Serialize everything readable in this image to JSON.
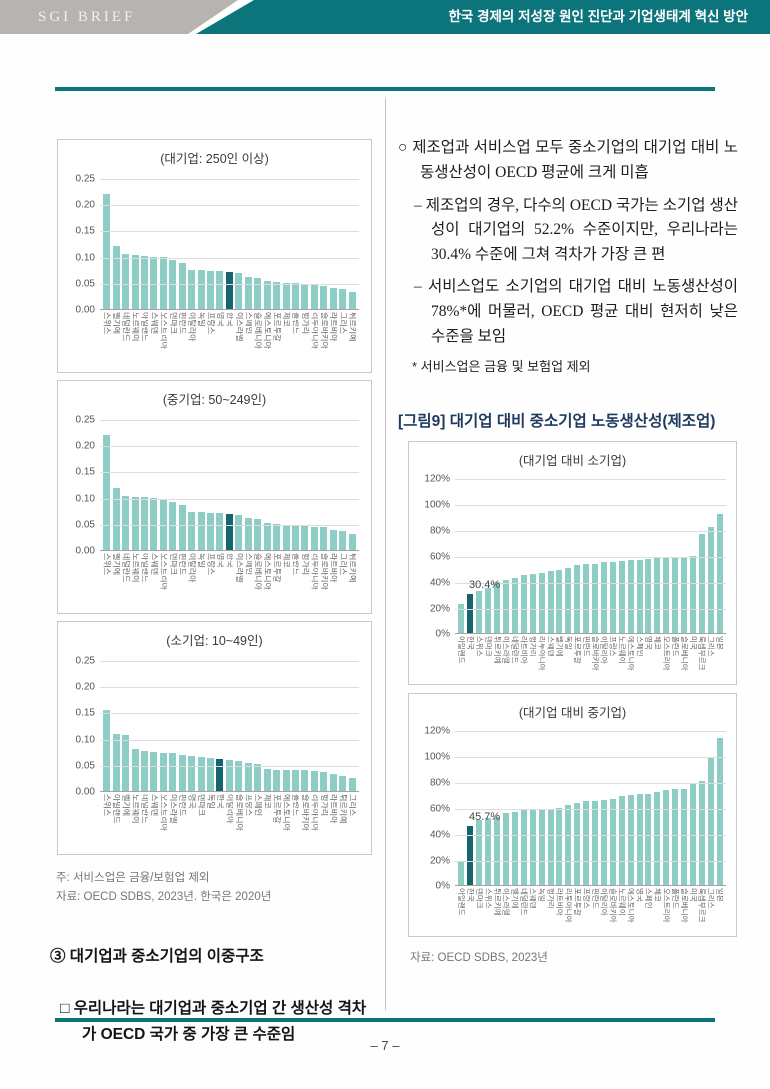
{
  "header": {
    "brand": "SGI BRIEF",
    "title": "한국 경제의 저성장 원인 진단과 기업생태계 혁신 방안"
  },
  "left": {
    "note": "주: 서비스업은 금융/보험업 제외",
    "source": "자료: OECD SDBS, 2023년. 한국은 2020년",
    "heading": "③ 대기업과 중소기업의 이중구조",
    "statement": "□ 우리나라는 대기업과 중소기업 간 생산성 격차가 OECD 국가 중 가장 큰 수준임"
  },
  "right": {
    "paragraphs": [
      {
        "text": "○ 제조업과 서비스업 모두 중소기업의 대기업 대비 노동생산성이 OECD 평균에 크게 미흡"
      },
      {
        "text": "– 제조업의 경우, 다수의 OECD 국가는 소기업 생산성이 대기업의 52.2% 수준이지만, 우리나라는 30.4% 수준에 그쳐 격차가 가장 큰 편"
      },
      {
        "text": "– 서비스업도 소기업의 대기업 대비 노동생산성이 78%*에 머물러, OECD 평균 대비 현저히 낮은 수준을 보임"
      }
    ],
    "footnote": "* 서비스업은 금융 및 보험업 제외",
    "figure_title": "[그림9] 대기업 대비 중소기업 노동생산성(제조업)",
    "source": "자료: OECD SDBS, 2023년"
  },
  "footer": {
    "page": "– 7 –"
  },
  "colors": {
    "teal": "#0c757c",
    "brand_gray": "#b6b3b0",
    "bar": "#8ecdc5",
    "bar_highlight": "#16646e",
    "figure_title_navy": "#1f3a5f"
  },
  "chart_data": [
    {
      "type": "bar",
      "title": "(대기업: 250인 이상)",
      "ylim": [
        0,
        0.25
      ],
      "ytick_values": [
        0,
        0.05,
        0.1,
        0.15,
        0.2,
        0.25
      ],
      "ytick_labels": [
        "0.00",
        "0.05",
        "0.10",
        "0.15",
        "0.20",
        "0.25"
      ],
      "grid": true,
      "legend": "none",
      "categories": [
        "스위스",
        "벨기에",
        "네덜란드",
        "노르웨이",
        "아일랜드",
        "스웨덴",
        "오스트리아",
        "덴마크",
        "핀란드",
        "이탈리아",
        "독일",
        "프랑스",
        "영국",
        "한국",
        "이스라엘",
        "스페인",
        "슬로베니아",
        "에스토니아",
        "포르투갈",
        "체코",
        "폴란드",
        "헝가리",
        "리투아니아",
        "슬로바키아",
        "라트비아",
        "그리스",
        "튀르키예"
      ],
      "values": [
        0.22,
        0.12,
        0.105,
        0.103,
        0.101,
        0.1,
        0.1,
        0.094,
        0.088,
        0.075,
        0.074,
        0.073,
        0.072,
        0.07,
        0.068,
        0.062,
        0.06,
        0.054,
        0.051,
        0.05,
        0.05,
        0.047,
        0.046,
        0.044,
        0.04,
        0.038,
        0.033
      ],
      "highlight_index": 13,
      "bar_color": "#8ecdc5",
      "highlight_color": "#16646e"
    },
    {
      "type": "bar",
      "title": "(중기업: 50~249인)",
      "ylim": [
        0,
        0.25
      ],
      "ytick_values": [
        0,
        0.05,
        0.1,
        0.15,
        0.2,
        0.25
      ],
      "ytick_labels": [
        "0.00",
        "0.05",
        "0.10",
        "0.15",
        "0.20",
        "0.25"
      ],
      "grid": true,
      "legend": "none",
      "categories": [
        "스위스",
        "벨기에",
        "네덜란드",
        "노르웨이",
        "아일랜드",
        "스웨덴",
        "오스트리아",
        "덴마크",
        "핀란드",
        "이탈리아",
        "독일",
        "프랑스",
        "영국",
        "한국",
        "이스라엘",
        "스페인",
        "슬로베니아",
        "에스토니아",
        "포르투갈",
        "체코",
        "폴란드",
        "헝가리",
        "리투아니아",
        "슬로바키아",
        "라트비아",
        "그리스",
        "튀르키예"
      ],
      "values": [
        0.22,
        0.118,
        0.103,
        0.102,
        0.101,
        0.1,
        0.098,
        0.092,
        0.086,
        0.073,
        0.072,
        0.071,
        0.07,
        0.068,
        0.067,
        0.061,
        0.059,
        0.052,
        0.049,
        0.048,
        0.048,
        0.046,
        0.044,
        0.043,
        0.038,
        0.036,
        0.031
      ],
      "highlight_index": 13,
      "bar_color": "#8ecdc5",
      "highlight_color": "#16646e"
    },
    {
      "type": "bar",
      "title": "(소기업: 10~49인)",
      "ylim": [
        0,
        0.25
      ],
      "ytick_values": [
        0,
        0.05,
        0.1,
        0.15,
        0.2,
        0.25
      ],
      "ytick_labels": [
        "0.00",
        "0.05",
        "0.10",
        "0.15",
        "0.20",
        "0.25"
      ],
      "grid": true,
      "legend": "none",
      "categories": [
        "스위스",
        "아일랜드",
        "벨기에",
        "노르웨이",
        "네덜란드",
        "스웨덴",
        "오스트리아",
        "이스라엘",
        "핀란드",
        "영국",
        "덴마크",
        "독일",
        "한국",
        "이탈리아",
        "슬로베니아",
        "프랑스",
        "스페인",
        "체코",
        "포르투갈",
        "에스토니아",
        "폴란드",
        "슬로바키아",
        "리투아니아",
        "헝가리",
        "라트비아",
        "튀르키예",
        "그리스"
      ],
      "values": [
        0.155,
        0.108,
        0.107,
        0.08,
        0.077,
        0.074,
        0.073,
        0.072,
        0.069,
        0.066,
        0.064,
        0.063,
        0.062,
        0.059,
        0.057,
        0.054,
        0.051,
        0.042,
        0.041,
        0.041,
        0.041,
        0.04,
        0.039,
        0.036,
        0.033,
        0.029,
        0.025
      ],
      "highlight_index": 12,
      "bar_color": "#8ecdc5",
      "highlight_color": "#16646e"
    },
    {
      "type": "bar",
      "title": "(대기업 대비 소기업)",
      "ylim": [
        0,
        120
      ],
      "ytick_values": [
        0,
        20,
        40,
        60,
        80,
        100,
        120
      ],
      "ytick_labels": [
        "0%",
        "20%",
        "40%",
        "60%",
        "80%",
        "100%",
        "120%"
      ],
      "grid": true,
      "legend": "none",
      "categories": [
        "아일랜드",
        "한국",
        "스위스",
        "덴마크",
        "튀르키예",
        "이스라엘",
        "네덜란드",
        "라트비아",
        "헝가리",
        "리투아니아",
        "스웨덴",
        "벨기에",
        "독일",
        "포르투갈",
        "핀란드",
        "슬로바키아",
        "이탈리아",
        "프랑스",
        "노르웨이",
        "에스토니아",
        "스페인",
        "영국",
        "체코",
        "오스트리아",
        "폴란드",
        "슬로베니아",
        "미국",
        "룩셈부르크",
        "그리스",
        "일본"
      ],
      "values": [
        23,
        30.4,
        33,
        35,
        40,
        41,
        43,
        45,
        46,
        47,
        48,
        49,
        51,
        53,
        53.5,
        54,
        55,
        55.5,
        56,
        56.5,
        57,
        57.5,
        58,
        58.5,
        59,
        59.5,
        60,
        77,
        82,
        92.5
      ],
      "highlight_index": 1,
      "highlight_label": "30.4%",
      "bar_color": "#8ecdc5",
      "highlight_color": "#16646e"
    },
    {
      "type": "bar",
      "title": "(대기업 대비 중기업)",
      "ylim": [
        0,
        120
      ],
      "ytick_values": [
        0,
        20,
        40,
        60,
        80,
        100,
        120
      ],
      "ytick_labels": [
        "0%",
        "20%",
        "40%",
        "60%",
        "80%",
        "100%",
        "120%"
      ],
      "grid": true,
      "legend": "none",
      "categories": [
        "아일랜드",
        "한국",
        "덴마크",
        "스위스",
        "튀르키예",
        "이스라엘",
        "벨기에",
        "네덜란드",
        "스웨덴",
        "독일",
        "헝가리",
        "라트비아",
        "리투아니아",
        "포르투갈",
        "프랑스",
        "핀란드",
        "이탈리아",
        "슬로바키아",
        "노르웨이",
        "에스토니아",
        "영국",
        "스페인",
        "체코",
        "오스트리아",
        "폴란드",
        "슬로베니아",
        "미국",
        "룩셈부르크",
        "그리스",
        "일본"
      ],
      "values": [
        19,
        45.7,
        51,
        52,
        53,
        56,
        57,
        58.5,
        59,
        59,
        59.5,
        60,
        62,
        64,
        65,
        65.5,
        66,
        66.5,
        69.5,
        70,
        70.5,
        71,
        72,
        74,
        74.5,
        75,
        79,
        80.5,
        98.5,
        114
      ],
      "highlight_index": 1,
      "highlight_label": "45.7%",
      "bar_color": "#8ecdc5",
      "highlight_color": "#16646e"
    }
  ]
}
